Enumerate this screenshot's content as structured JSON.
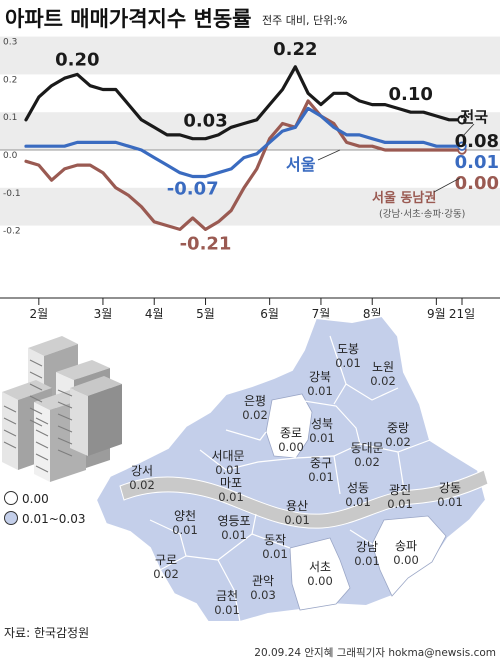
{
  "header": {
    "title": "아파트 매매가격지수 변동률",
    "subtitle": "전주 대비, 단위:%"
  },
  "chart_data": {
    "type": "line",
    "yticks": [
      "0.3",
      "0.2",
      "0.1",
      "0.0",
      "-0.1",
      "-0.2"
    ],
    "ylim": [
      -0.25,
      0.3
    ],
    "xtick_labels": [
      "2월",
      "3월",
      "4월",
      "5월",
      "6월",
      "7월",
      "8월",
      "9월",
      "21일"
    ],
    "x_weeks": [
      "1/27",
      "2/3",
      "2/10",
      "2/17",
      "2/24",
      "3/2",
      "3/9",
      "3/16",
      "3/23",
      "3/30",
      "4/6",
      "4/13",
      "4/20",
      "4/27",
      "5/4",
      "5/11",
      "5/18",
      "5/25",
      "6/1",
      "6/8",
      "6/15",
      "6/22",
      "6/29",
      "7/6",
      "7/13",
      "7/20",
      "7/27",
      "8/3",
      "8/10",
      "8/17",
      "8/24",
      "8/31",
      "9/7",
      "9/14",
      "9/21"
    ],
    "series": [
      {
        "name": "전국",
        "color": "#1a1a1a",
        "values": [
          0.08,
          0.14,
          0.17,
          0.19,
          0.2,
          0.17,
          0.16,
          0.16,
          0.12,
          0.08,
          0.06,
          0.04,
          0.04,
          0.03,
          0.03,
          0.04,
          0.06,
          0.07,
          0.08,
          0.12,
          0.16,
          0.22,
          0.15,
          0.12,
          0.15,
          0.15,
          0.13,
          0.12,
          0.12,
          0.11,
          0.1,
          0.1,
          0.09,
          0.08,
          0.08
        ]
      },
      {
        "name": "서울",
        "color": "#3a6bc0",
        "values": [
          0.01,
          0.01,
          0.01,
          0.01,
          0.02,
          0.02,
          0.02,
          0.02,
          0.01,
          0.0,
          -0.02,
          -0.04,
          -0.06,
          -0.07,
          -0.07,
          -0.06,
          -0.05,
          -0.02,
          -0.01,
          0.02,
          0.05,
          0.06,
          0.11,
          0.09,
          0.06,
          0.04,
          0.04,
          0.03,
          0.02,
          0.02,
          0.02,
          0.02,
          0.01,
          0.01,
          0.01
        ]
      },
      {
        "name": "서울 동남권",
        "color": "#9a5a52",
        "values": [
          -0.03,
          -0.04,
          -0.08,
          -0.05,
          -0.04,
          -0.04,
          -0.06,
          -0.1,
          -0.12,
          -0.15,
          -0.19,
          -0.2,
          -0.21,
          -0.18,
          -0.21,
          -0.19,
          -0.16,
          -0.1,
          -0.05,
          0.03,
          0.07,
          0.06,
          0.13,
          0.09,
          0.07,
          0.02,
          0.01,
          0.01,
          0.0,
          0.0,
          0.0,
          0.0,
          0.0,
          0.0,
          0.0
        ]
      }
    ],
    "annotations": [
      {
        "text": "0.20",
        "color": "#1a1a1a"
      },
      {
        "text": "0.03",
        "color": "#1a1a1a"
      },
      {
        "text": "0.22",
        "color": "#1a1a1a"
      },
      {
        "text": "0.10",
        "color": "#1a1a1a"
      },
      {
        "text": "-0.07",
        "color": "#3a6bc0"
      },
      {
        "text": "-0.21",
        "color": "#9a5a52"
      }
    ],
    "end_labels": [
      {
        "series": "전국",
        "name": "전국",
        "value": "0.08",
        "color": "#1a1a1a"
      },
      {
        "series": "서울",
        "name": "서울",
        "value": "0.01",
        "color": "#3a6bc0"
      },
      {
        "series": "서울 동남권",
        "name": "서울 동남권",
        "value": "0.00",
        "color": "#9a5a52"
      }
    ],
    "southeast_note": "(강남·서초·송파·강동)"
  },
  "map": {
    "legend": [
      {
        "label": "0.00",
        "color": "#ffffff"
      },
      {
        "label": "0.01~0.03",
        "color": "#c4cfea"
      }
    ],
    "districts": [
      {
        "name": "도봉",
        "value": "0.01"
      },
      {
        "name": "노원",
        "value": "0.02"
      },
      {
        "name": "강북",
        "value": "0.01"
      },
      {
        "name": "은평",
        "value": "0.02"
      },
      {
        "name": "성북",
        "value": "0.01"
      },
      {
        "name": "중랑",
        "value": "0.02"
      },
      {
        "name": "종로",
        "value": "0.00"
      },
      {
        "name": "동대문",
        "value": "0.02"
      },
      {
        "name": "서대문",
        "value": "0.01"
      },
      {
        "name": "강서",
        "value": "0.02"
      },
      {
        "name": "마포",
        "value": "0.01"
      },
      {
        "name": "중구",
        "value": "0.01"
      },
      {
        "name": "성동",
        "value": "0.01"
      },
      {
        "name": "광진",
        "value": "0.01"
      },
      {
        "name": "강동",
        "value": "0.01"
      },
      {
        "name": "용산",
        "value": "0.01"
      },
      {
        "name": "양천",
        "value": "0.01"
      },
      {
        "name": "영등포",
        "value": "0.01"
      },
      {
        "name": "동작",
        "value": "0.01"
      },
      {
        "name": "구로",
        "value": "0.02"
      },
      {
        "name": "강남",
        "value": "0.01"
      },
      {
        "name": "송파",
        "value": "0.00"
      },
      {
        "name": "서초",
        "value": "0.00"
      },
      {
        "name": "관악",
        "value": "0.03"
      },
      {
        "name": "금천",
        "value": "0.01"
      }
    ]
  },
  "footer": {
    "source": "자료: 한국감정원",
    "credit": "20.09.24 안지혜 그래픽기자 hokma@newsis.com"
  }
}
